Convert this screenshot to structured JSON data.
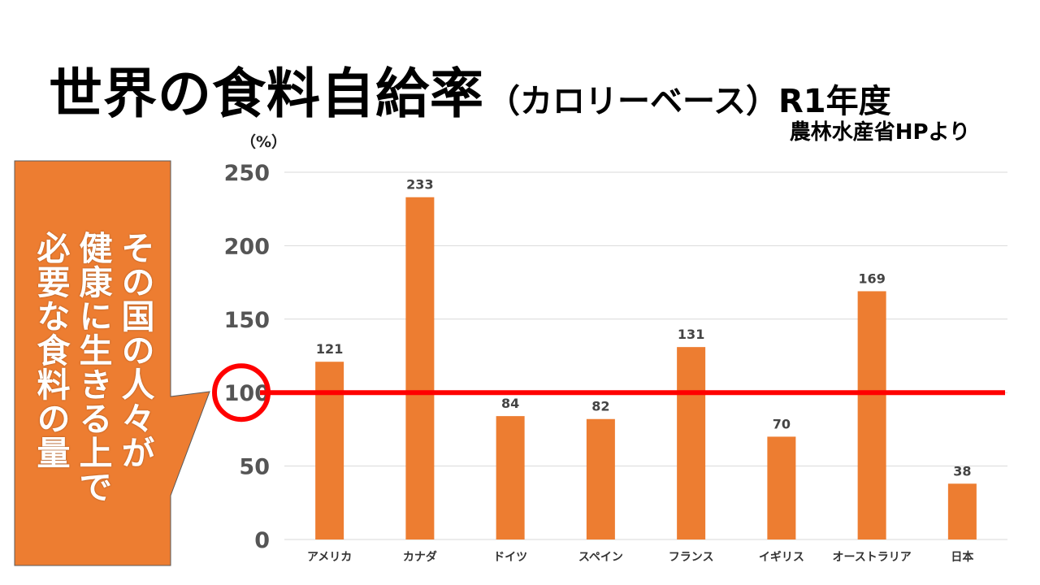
{
  "title": {
    "main": "世界の食料自給率",
    "sub": "（カロリーベース）R1年度"
  },
  "source": "農林水産省HPより",
  "callout": {
    "lines": [
      "その国の人々が",
      "健康に生きる上で",
      "必要な食料の量"
    ],
    "color": "#ED7D31"
  },
  "reference": {
    "value": 100,
    "color": "#FF0000"
  },
  "chart_data": {
    "type": "bar",
    "unit_label": "（%）",
    "categories": [
      "アメリカ",
      "カナダ",
      "ドイツ",
      "スペイン",
      "フランス",
      "イギリス",
      "オーストラリア",
      "日本"
    ],
    "values": [
      121,
      233,
      84,
      82,
      131,
      70,
      169,
      38
    ],
    "ylim": [
      0,
      250
    ],
    "yticks": [
      0,
      50,
      100,
      150,
      200,
      250
    ],
    "grid": true,
    "bar_color": "#ED7D31"
  }
}
